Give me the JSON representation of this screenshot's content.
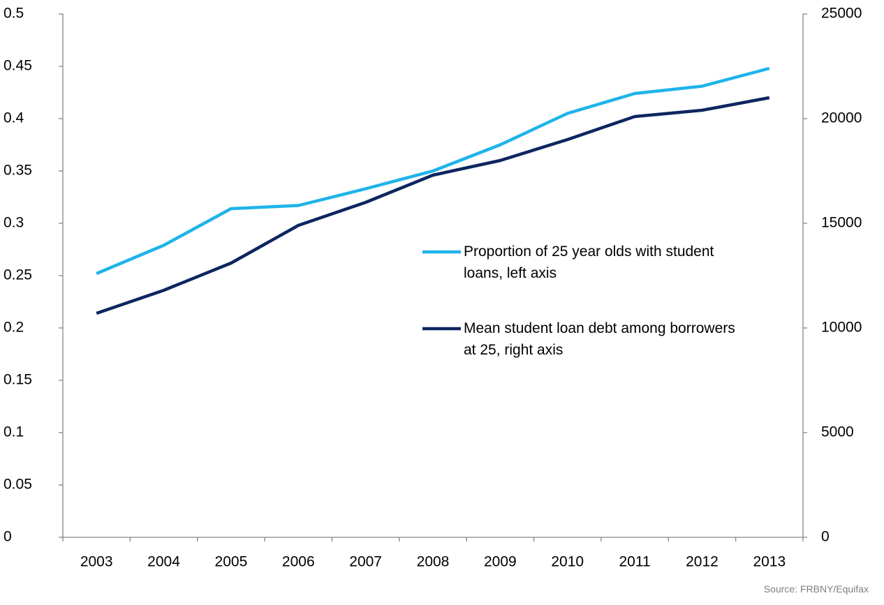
{
  "chart_data": {
    "type": "line",
    "categories": [
      "2003",
      "2004",
      "2005",
      "2006",
      "2007",
      "2008",
      "2009",
      "2010",
      "2011",
      "2012",
      "2013"
    ],
    "series": [
      {
        "name": "Proportion of 25 year olds with student loans, left axis",
        "color": "#1fb3ea",
        "values": [
          0.252,
          0.279,
          0.314,
          0.317,
          0.333,
          0.35,
          0.375,
          0.405,
          0.424,
          0.431,
          0.448
        ]
      },
      {
        "name": "Mean student loan debt among borrowers at 25, right axis",
        "color": "#0d2660",
        "axis": "y2",
        "values": [
          10700,
          11800,
          13100,
          14900,
          16000,
          17300,
          18000,
          19000,
          20100,
          20400,
          21000
        ]
      }
    ],
    "ylim": [
      0,
      0.5
    ],
    "yticks": [
      0,
      0.05,
      0.1,
      0.15,
      0.2,
      0.25,
      0.3,
      0.35,
      0.4,
      0.45,
      0.5
    ],
    "y2lim": [
      0,
      25000
    ],
    "y2ticks": [
      0,
      5000,
      10000,
      15000,
      20000,
      25000
    ],
    "grid": false,
    "source": "Source: FRBNY/Equifax"
  }
}
